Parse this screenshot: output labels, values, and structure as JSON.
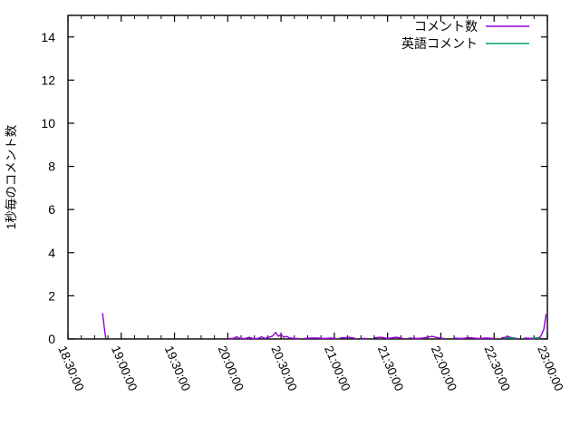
{
  "figure": {
    "background": "#ffffff",
    "border_color": "#000000",
    "text_color": "#000000"
  },
  "chart_data": {
    "type": "line",
    "title": "",
    "xlabel": "",
    "ylabel": "1秒毎のコメント数",
    "grid": false,
    "legend_position": "top-right-inside",
    "x_axis": {
      "kind": "time",
      "range_minutes": [
        0,
        270
      ],
      "start_label": "18:30:00",
      "end_label": "23:00:00",
      "major_interval_minutes": 30,
      "minor_interval_minutes": 7.5,
      "tick_labels": [
        "18:30:00",
        "19:00:00",
        "19:30:00",
        "20:00:00",
        "20:30:00",
        "21:00:00",
        "21:30:00",
        "22:00:00",
        "22:30:00",
        "23:00:00"
      ],
      "label_rotation_deg": 67
    },
    "y_axis": {
      "lim": [
        0,
        15
      ],
      "ticks": [
        0,
        2,
        4,
        6,
        8,
        10,
        12,
        14
      ]
    },
    "series": [
      {
        "name": "コメント数",
        "color": "#9400d3",
        "points": [
          [
            19.5,
            1.2
          ],
          [
            20.4,
            0.55
          ],
          [
            21.3,
            0.02
          ],
          null,
          [
            90,
            0.02
          ],
          [
            93,
            0.02
          ],
          [
            95,
            0.1
          ],
          [
            97,
            0.02
          ],
          [
            100,
            0.02
          ],
          [
            102,
            0.08
          ],
          [
            104,
            0.02
          ],
          [
            107,
            0.02
          ],
          [
            109,
            0.1
          ],
          [
            111,
            0.02
          ],
          [
            113,
            0.08
          ],
          [
            115,
            0.12
          ],
          [
            117,
            0.3
          ],
          [
            118.5,
            0.12
          ],
          [
            120,
            0.2
          ],
          [
            121.5,
            0.08
          ],
          [
            123,
            0.12
          ],
          [
            125,
            0.04
          ],
          [
            128,
            0.02
          ],
          [
            130,
            0.02
          ],
          null,
          [
            133,
            0.02
          ],
          [
            137,
            0.04
          ],
          [
            140,
            0.04
          ],
          [
            145,
            0.02
          ],
          [
            148,
            0.04
          ],
          [
            151,
            0.02
          ],
          null,
          [
            153,
            0.04
          ],
          [
            156,
            0.06
          ],
          [
            158,
            0.08
          ],
          [
            162,
            0.02
          ],
          null,
          [
            165,
            0.02
          ],
          [
            168,
            0.02
          ],
          null,
          [
            172,
            0.04
          ],
          [
            176,
            0.08
          ],
          [
            180,
            0.02
          ],
          [
            185,
            0.08
          ],
          [
            189,
            0.02
          ],
          null,
          [
            192,
            0.04
          ],
          [
            197,
            0.02
          ],
          [
            200,
            0.04
          ],
          [
            205,
            0.12
          ],
          [
            209,
            0.04
          ],
          [
            212,
            0.02
          ],
          null,
          [
            217,
            0.04
          ],
          [
            222,
            0.02
          ],
          [
            226,
            0.06
          ],
          [
            231,
            0.02
          ],
          [
            236,
            0.04
          ],
          [
            240,
            0.02
          ],
          null,
          [
            244,
            0.04
          ],
          [
            248,
            0.1
          ],
          [
            251,
            0.04
          ],
          [
            253,
            0.02
          ],
          null,
          [
            257,
            0.04
          ],
          [
            261,
            0.02
          ],
          [
            264,
            0.04
          ],
          [
            266,
            0.08
          ],
          [
            268,
            0.45
          ],
          [
            269.3,
            1.15
          ]
        ]
      },
      {
        "name": "英語コメント",
        "color": "#009e73",
        "points": [
          [
            246,
            0.04
          ],
          [
            250,
            0.06
          ],
          [
            252,
            0.02
          ],
          null,
          [
            261,
            0.04
          ],
          [
            264,
            0.05
          ],
          [
            265.5,
            0.02
          ]
        ]
      }
    ]
  },
  "legend": {
    "entries": [
      {
        "label": "コメント数",
        "color": "#9400d3"
      },
      {
        "label": "英語コメント",
        "color": "#009e73"
      }
    ]
  }
}
